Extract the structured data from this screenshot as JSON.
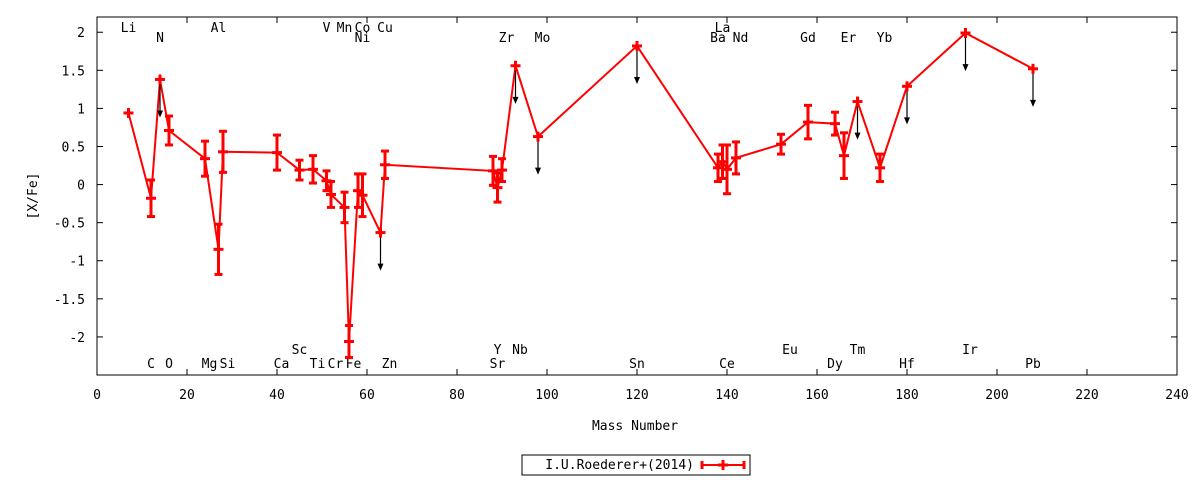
{
  "chart_data": {
    "type": "scatter",
    "xlabel": "Mass Number",
    "ylabel": "[X/Fe]",
    "xlim": [
      0,
      240
    ],
    "ylim": [
      -2.5,
      2.2
    ],
    "x_ticks": [
      "0",
      "20",
      "40",
      "60",
      "80",
      "100",
      "120",
      "140",
      "160",
      "180",
      "200",
      "220",
      "240"
    ],
    "y_ticks": [
      "2",
      "1.5",
      "1",
      "0.5",
      "0",
      "-0.5",
      "-1",
      "-1.5",
      "-2"
    ],
    "legend": {
      "label": "I.U.Roederer+(2014)",
      "position": "bottom-center"
    },
    "series_color": "#ff0000",
    "points": [
      {
        "x": 7,
        "y": 0.94,
        "err": 0
      },
      {
        "x": 12,
        "y": -0.18,
        "err": 0.24
      },
      {
        "x": 14,
        "y": 1.38,
        "err": 0,
        "upper": true
      },
      {
        "x": 16,
        "y": 0.71,
        "err": 0.19
      },
      {
        "x": 24,
        "y": 0.34,
        "err": 0.23
      },
      {
        "x": 27,
        "y": -0.85,
        "err": 0.33
      },
      {
        "x": 28,
        "y": 0.43,
        "err": 0.27
      },
      {
        "x": 40,
        "y": 0.42,
        "err": 0.23
      },
      {
        "x": 45,
        "y": 0.19,
        "err": 0.13
      },
      {
        "x": 48,
        "y": 0.2,
        "err": 0.18
      },
      {
        "x": 51,
        "y": 0.05,
        "err": 0.13
      },
      {
        "x": 52,
        "y": -0.13,
        "err": 0.17
      },
      {
        "x": 55,
        "y": -0.3,
        "err": 0.2
      },
      {
        "x": 56,
        "y": -2.06,
        "err": 0.21
      },
      {
        "x": 58,
        "y": -0.08,
        "err": 0.22
      },
      {
        "x": 59,
        "y": -0.14,
        "err": 0.28
      },
      {
        "x": 63,
        "y": -0.63,
        "err": 0,
        "upper": true
      },
      {
        "x": 64,
        "y": 0.26,
        "err": 0.18
      },
      {
        "x": 88,
        "y": 0.18,
        "err": 0.19
      },
      {
        "x": 89,
        "y": -0.04,
        "err": 0.19
      },
      {
        "x": 90,
        "y": 0.19,
        "err": 0.15
      },
      {
        "x": 93,
        "y": 1.56,
        "err": 0,
        "upper": true
      },
      {
        "x": 98,
        "y": 0.63,
        "err": 0,
        "upper": true
      },
      {
        "x": 120,
        "y": 1.82,
        "err": 0,
        "upper": true
      },
      {
        "x": 138,
        "y": 0.22,
        "err": 0.18
      },
      {
        "x": 139,
        "y": 0.3,
        "err": 0.22
      },
      {
        "x": 140,
        "y": 0.2,
        "err": 0.32
      },
      {
        "x": 142,
        "y": 0.35,
        "err": 0.21
      },
      {
        "x": 152,
        "y": 0.53,
        "err": 0.13
      },
      {
        "x": 158,
        "y": 0.82,
        "err": 0.22
      },
      {
        "x": 164,
        "y": 0.8,
        "err": 0.15
      },
      {
        "x": 166,
        "y": 0.38,
        "err": 0.3
      },
      {
        "x": 169,
        "y": 1.09,
        "err": 0,
        "upper": true
      },
      {
        "x": 174,
        "y": 0.22,
        "err": 0.18
      },
      {
        "x": 180,
        "y": 1.29,
        "err": 0,
        "upper": true
      },
      {
        "x": 193,
        "y": 1.99,
        "err": 0,
        "upper": true
      },
      {
        "x": 208,
        "y": 1.52,
        "err": 0,
        "upper": true
      }
    ],
    "element_labels": [
      {
        "label": "Li",
        "x": 7,
        "row": "top1"
      },
      {
        "label": "N",
        "x": 14,
        "row": "top2"
      },
      {
        "label": "Al",
        "x": 27,
        "row": "top1"
      },
      {
        "label": "V",
        "x": 51,
        "row": "top1"
      },
      {
        "label": "Mn",
        "x": 55,
        "row": "top1"
      },
      {
        "label": "Co",
        "x": 59,
        "row": "top1"
      },
      {
        "label": "Ni",
        "x": 59,
        "row": "top2"
      },
      {
        "label": "Cu",
        "x": 64,
        "row": "top1"
      },
      {
        "label": "Zr",
        "x": 91,
        "row": "top2"
      },
      {
        "label": "Mo",
        "x": 99,
        "row": "top2"
      },
      {
        "label": "La",
        "x": 139,
        "row": "top1"
      },
      {
        "label": "Ba",
        "x": 138,
        "row": "top2"
      },
      {
        "label": "Nd",
        "x": 143,
        "row": "top2"
      },
      {
        "label": "Gd",
        "x": 158,
        "row": "top2"
      },
      {
        "label": "Er",
        "x": 167,
        "row": "top2"
      },
      {
        "label": "Yb",
        "x": 175,
        "row": "top2"
      },
      {
        "label": "Sc",
        "x": 45,
        "row": "bot1"
      },
      {
        "label": "Y",
        "x": 89,
        "row": "bot1"
      },
      {
        "label": "Nb",
        "x": 94,
        "row": "bot1"
      },
      {
        "label": "Eu",
        "x": 154,
        "row": "bot1"
      },
      {
        "label": "Tm",
        "x": 169,
        "row": "bot1"
      },
      {
        "label": "Ir",
        "x": 194,
        "row": "bot1"
      },
      {
        "label": "C",
        "x": 12,
        "row": "bot2"
      },
      {
        "label": "O",
        "x": 16,
        "row": "bot2"
      },
      {
        "label": "Mg",
        "x": 25,
        "row": "bot2"
      },
      {
        "label": "Si",
        "x": 29,
        "row": "bot2"
      },
      {
        "label": "Ca",
        "x": 41,
        "row": "bot2"
      },
      {
        "label": "Ti",
        "x": 49,
        "row": "bot2"
      },
      {
        "label": "Cr",
        "x": 53,
        "row": "bot2"
      },
      {
        "label": "Fe",
        "x": 57,
        "row": "bot2"
      },
      {
        "label": "Zn",
        "x": 65,
        "row": "bot2"
      },
      {
        "label": "Sr",
        "x": 89,
        "row": "bot2"
      },
      {
        "label": "Sn",
        "x": 120,
        "row": "bot2"
      },
      {
        "label": "Ce",
        "x": 140,
        "row": "bot2"
      },
      {
        "label": "Dy",
        "x": 164,
        "row": "bot2"
      },
      {
        "label": "Hf",
        "x": 180,
        "row": "bot2"
      },
      {
        "label": "Pb",
        "x": 208,
        "row": "bot2"
      }
    ]
  }
}
